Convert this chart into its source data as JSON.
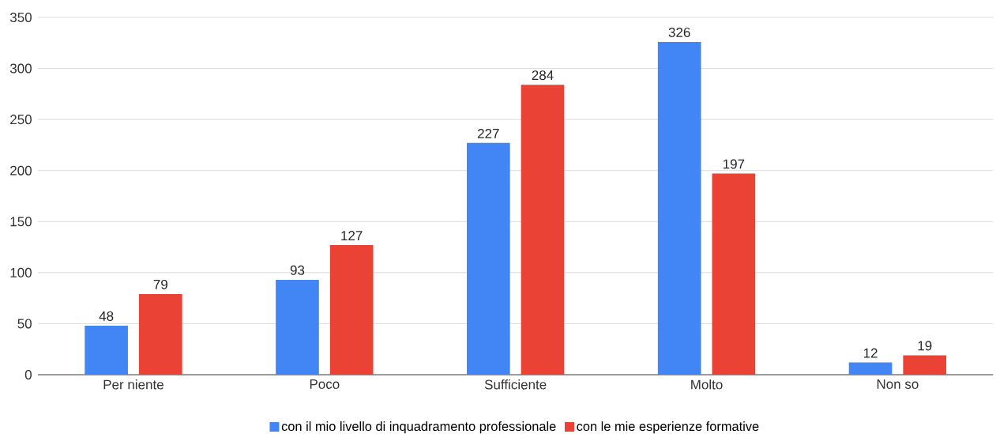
{
  "chart_data": {
    "type": "bar",
    "categories": [
      "Per niente",
      "Poco",
      "Sufficiente",
      "Molto",
      "Non so"
    ],
    "series": [
      {
        "name": "con il mio livello di inquadramento professionale",
        "color": "#4285f4",
        "values": [
          48,
          93,
          227,
          326,
          12
        ]
      },
      {
        "name": "con le mie esperienze formative",
        "color": "#ea4335",
        "values": [
          79,
          127,
          284,
          197,
          19
        ]
      }
    ],
    "ylim": [
      0,
      350
    ],
    "yticks": [
      0,
      50,
      100,
      150,
      200,
      250,
      300,
      350
    ],
    "grid": "y",
    "legend": "bottom",
    "data_labels": true
  }
}
